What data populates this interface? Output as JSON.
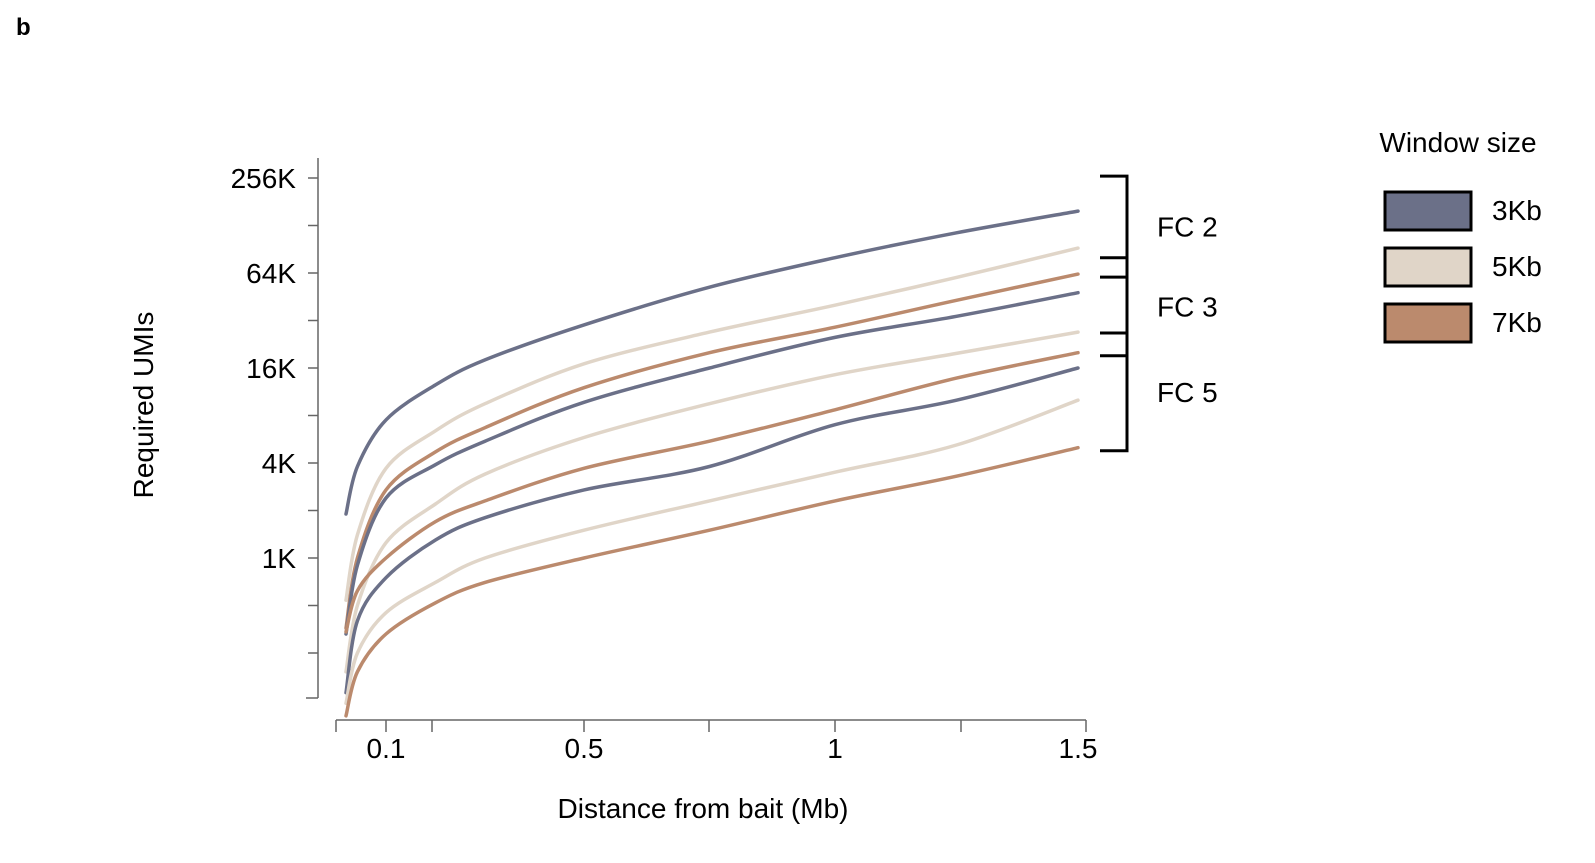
{
  "panel_label": "b",
  "chart_data": {
    "type": "line",
    "xlabel": "Distance from bait (Mb)",
    "ylabel": "Required UMIs",
    "x_ticks": [
      {
        "value": 0.1,
        "label": "0.1"
      },
      {
        "value": 0.5,
        "label": "0.5"
      },
      {
        "value": 1,
        "label": "1"
      },
      {
        "value": 1.5,
        "label": "1.5"
      }
    ],
    "xlim": [
      0.0,
      1.5
    ],
    "y_scale": "log2",
    "y_ticks": [
      {
        "value": 1000,
        "label": "1K"
      },
      {
        "value": 4000,
        "label": "4K"
      },
      {
        "value": 16000,
        "label": "16K"
      },
      {
        "value": 64000,
        "label": "64K"
      },
      {
        "value": 256000,
        "label": "256K"
      }
    ],
    "ylim": [
      100,
      300000
    ],
    "legend": {
      "title": "Window size",
      "position": "right",
      "entries": [
        {
          "label": "3Kb",
          "color": "#6b7088"
        },
        {
          "label": "5Kb",
          "color": "#e0d5c8"
        },
        {
          "label": "7Kb",
          "color": "#bb8a6d"
        }
      ]
    },
    "groups": [
      {
        "label": "FC 2",
        "series": [
          "FC 2 3Kb",
          "FC 2 5Kb",
          "FC 2 7Kb"
        ]
      },
      {
        "label": "FC 3",
        "series": [
          "FC 3 3Kb",
          "FC 3 5Kb",
          "FC 3 7Kb"
        ]
      },
      {
        "label": "FC 5",
        "series": [
          "FC 5 3Kb",
          "FC 5 5Kb",
          "FC 5 7Kb"
        ]
      }
    ],
    "series": [
      {
        "fold_change": "FC 2",
        "window": "3Kb",
        "color": "#6b7088",
        "x": [
          0.03,
          0.05,
          0.1,
          0.2,
          0.3,
          0.5,
          0.75,
          1.0,
          1.25,
          1.5
        ],
        "y": [
          1900,
          3800,
          7500,
          12500,
          18000,
          30000,
          52000,
          80000,
          115000,
          158000
        ]
      },
      {
        "fold_change": "FC 2",
        "window": "5Kb",
        "color": "#e0d5c8",
        "x": [
          0.03,
          0.05,
          0.1,
          0.2,
          0.3,
          0.5,
          0.75,
          1.0,
          1.25,
          1.5
        ],
        "y": [
          540,
          1400,
          3700,
          6400,
          9500,
          17000,
          27000,
          40000,
          60000,
          92000
        ]
      },
      {
        "fold_change": "FC 2",
        "window": "7Kb",
        "color": "#bb8a6d",
        "x": [
          0.03,
          0.05,
          0.1,
          0.2,
          0.3,
          0.5,
          0.75,
          1.0,
          1.25,
          1.5
        ],
        "y": [
          360,
          1000,
          2700,
          4700,
          6700,
          12000,
          20000,
          29000,
          43000,
          63000
        ]
      },
      {
        "fold_change": "FC 3",
        "window": "3Kb",
        "color": "#6b7088",
        "x": [
          0.03,
          0.05,
          0.1,
          0.2,
          0.3,
          0.5,
          0.75,
          1.0,
          1.25,
          1.5
        ],
        "y": [
          330,
          900,
          2400,
          3900,
          5500,
          9700,
          16000,
          25000,
          34000,
          48000
        ]
      },
      {
        "fold_change": "FC 3",
        "window": "5Kb",
        "color": "#e0d5c8",
        "x": [
          0.03,
          0.05,
          0.1,
          0.2,
          0.3,
          0.5,
          0.75,
          1.0,
          1.25,
          1.5
        ],
        "y": [
          190,
          500,
          1250,
          2200,
          3400,
          5800,
          9500,
          14500,
          19800,
          27000
        ]
      },
      {
        "fold_change": "FC 3",
        "window": "7Kb",
        "color": "#bb8a6d",
        "x": [
          0.03,
          0.05,
          0.1,
          0.2,
          0.3,
          0.5,
          0.75,
          1.0,
          1.25,
          1.5
        ],
        "y": [
          340,
          620,
          1000,
          1700,
          2300,
          3700,
          5500,
          8700,
          13800,
          20000
        ]
      },
      {
        "fold_change": "FC 5",
        "window": "3Kb",
        "color": "#6b7088",
        "x": [
          0.03,
          0.05,
          0.1,
          0.2,
          0.3,
          0.5,
          0.75,
          1.0,
          1.25,
          1.5
        ],
        "y": [
          140,
          400,
          750,
          1300,
          1800,
          2700,
          3800,
          7000,
          10000,
          16000
        ]
      },
      {
        "fold_change": "FC 5",
        "window": "5Kb",
        "color": "#e0d5c8",
        "x": [
          0.03,
          0.05,
          0.1,
          0.2,
          0.3,
          0.5,
          0.75,
          1.0,
          1.25,
          1.5
        ],
        "y": [
          120,
          250,
          450,
          700,
          1000,
          1500,
          2300,
          3500,
          5200,
          10000
        ]
      },
      {
        "fold_change": "FC 5",
        "window": "7Kb",
        "color": "#bb8a6d",
        "x": [
          0.03,
          0.05,
          0.1,
          0.2,
          0.3,
          0.5,
          0.75,
          1.0,
          1.25,
          1.5
        ],
        "y": [
          100,
          190,
          330,
          520,
          700,
          1000,
          1500,
          2300,
          3300,
          5000
        ]
      }
    ]
  }
}
